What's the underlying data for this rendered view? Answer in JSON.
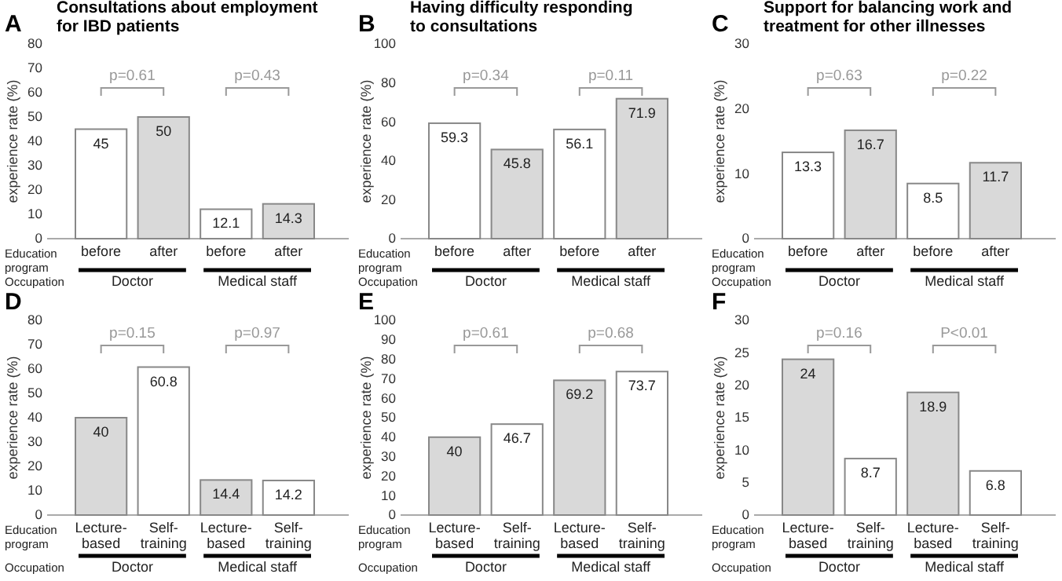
{
  "chart_data": [
    {
      "type": "bar",
      "title": "Consultations about employment for IBD patients",
      "ylabel": "experience rate (%)",
      "categories": [
        "before",
        "after",
        "before",
        "after"
      ],
      "values": [
        45,
        50,
        12.1,
        14.3
      ],
      "colors": [
        "#ffffff",
        "#d9d9d9",
        "#ffffff",
        "#d9d9d9"
      ],
      "ylim": [
        0,
        80
      ],
      "yticks": [
        0,
        10,
        20,
        30,
        40,
        50,
        60,
        70,
        80
      ],
      "data_labels": true,
      "annotations": [
        "A",
        "p=0.61",
        "p=0.43",
        "Education program",
        "Occupation",
        "Doctor",
        "Medical staff"
      ]
    },
    {
      "type": "bar",
      "title": "Having difficulty responding to consultations",
      "ylabel": "experience rate (%)",
      "categories": [
        "before",
        "after",
        "before",
        "after"
      ],
      "values": [
        59.3,
        45.8,
        56.1,
        71.9
      ],
      "colors": [
        "#ffffff",
        "#d9d9d9",
        "#ffffff",
        "#d9d9d9"
      ],
      "ylim": [
        0,
        100
      ],
      "yticks": [
        0,
        20,
        40,
        60,
        80,
        100
      ],
      "data_labels": true,
      "annotations": [
        "B",
        "p=0.34",
        "p=0.11",
        "Education program",
        "Occupation",
        "Doctor",
        "Medical staff"
      ]
    },
    {
      "type": "bar",
      "title": "Support for balancing work and treatment for other illnesses",
      "ylabel": "experience rate (%)",
      "categories": [
        "before",
        "after",
        "before",
        "after"
      ],
      "values": [
        13.3,
        16.7,
        8.5,
        11.7
      ],
      "colors": [
        "#ffffff",
        "#d9d9d9",
        "#ffffff",
        "#d9d9d9"
      ],
      "ylim": [
        0,
        30
      ],
      "yticks": [
        0,
        10,
        20,
        30
      ],
      "data_labels": true,
      "annotations": [
        "C",
        "p=0.63",
        "p=0.22",
        "Education program",
        "Occupation",
        "Doctor",
        "Medical staff"
      ]
    },
    {
      "type": "bar",
      "ylabel": "experience rate (%)",
      "categories": [
        "Lecture-based",
        "Self-training",
        "Lecture-based",
        "Self-training"
      ],
      "values": [
        40,
        60.8,
        14.4,
        14.2
      ],
      "colors": [
        "#d9d9d9",
        "#ffffff",
        "#d9d9d9",
        "#ffffff"
      ],
      "ylim": [
        0,
        80
      ],
      "yticks": [
        0,
        10,
        20,
        30,
        40,
        50,
        60,
        70,
        80
      ],
      "data_labels": true,
      "annotations": [
        "D",
        "p=0.15",
        "p=0.97",
        "Education program",
        "Occupation",
        "Doctor",
        "Medical staff"
      ]
    },
    {
      "type": "bar",
      "ylabel": "experience rate (%)",
      "categories": [
        "Lecture-based",
        "Self-training",
        "Lecture-based",
        "Self-training"
      ],
      "values": [
        40,
        46.7,
        69.2,
        73.7
      ],
      "colors": [
        "#d9d9d9",
        "#ffffff",
        "#d9d9d9",
        "#ffffff"
      ],
      "ylim": [
        0,
        100
      ],
      "yticks": [
        0,
        10,
        20,
        30,
        40,
        50,
        60,
        70,
        80,
        90,
        100
      ],
      "data_labels": true,
      "annotations": [
        "E",
        "p=0.61",
        "p=0.68",
        "Education program",
        "Occupation",
        "Doctor",
        "Medical staff"
      ]
    },
    {
      "type": "bar",
      "ylabel": "experience rate (%)",
      "categories": [
        "Lecture-based",
        "Self-training",
        "Lecture-based",
        "Self-training"
      ],
      "values": [
        24,
        8.7,
        18.9,
        6.8
      ],
      "colors": [
        "#d9d9d9",
        "#ffffff",
        "#d9d9d9",
        "#ffffff"
      ],
      "ylim": [
        0,
        30
      ],
      "yticks": [
        0,
        5,
        10,
        15,
        20,
        25,
        30
      ],
      "data_labels": true,
      "annotations": [
        "F",
        "p=0.16",
        "P<0.01",
        "Education program",
        "Occupation",
        "Doctor",
        "Medical staff"
      ]
    }
  ]
}
